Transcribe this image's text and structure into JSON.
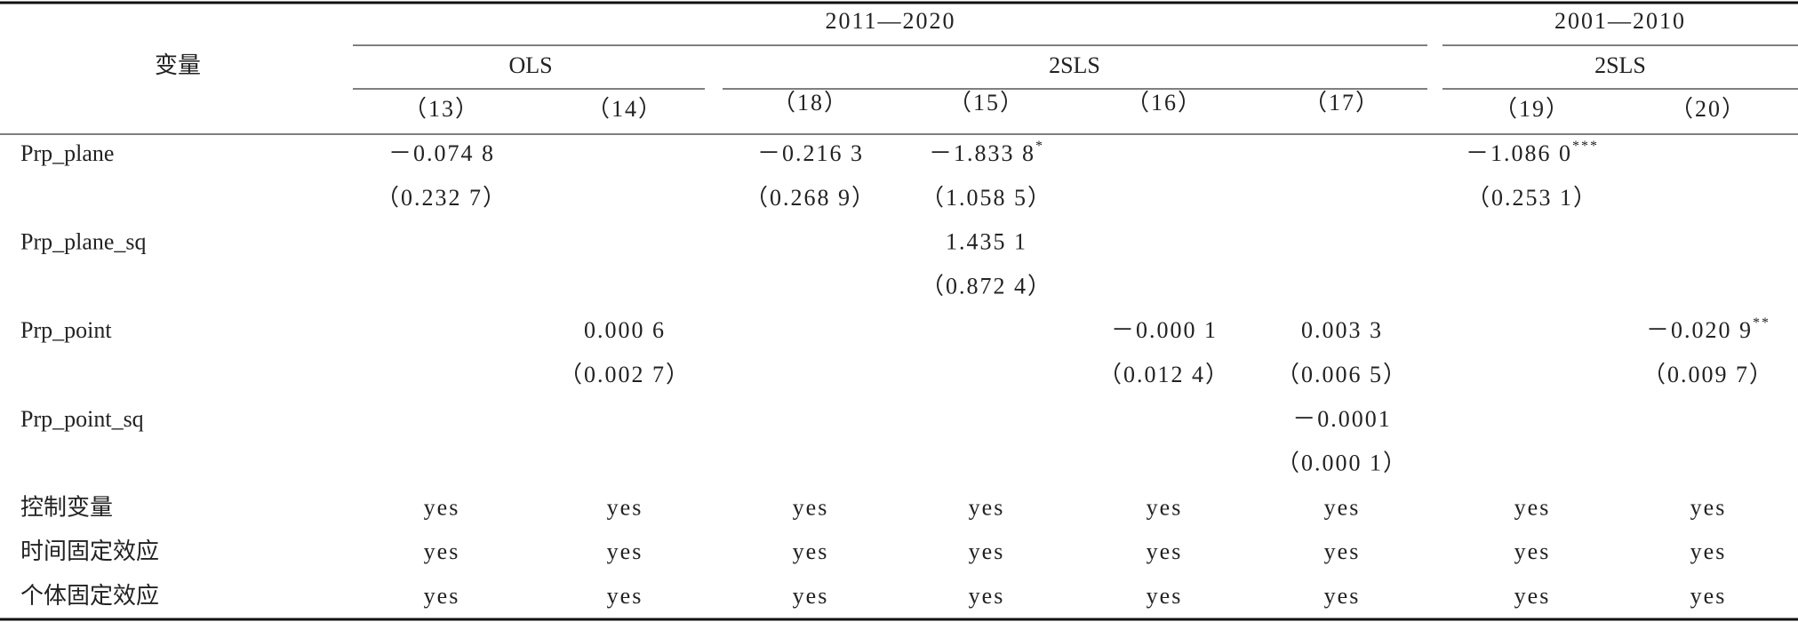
{
  "header": {
    "variable": "变量",
    "period_a": "2011—2020",
    "period_b": "2001—2010",
    "ols": "OLS",
    "tsls_a": "2SLS",
    "tsls_b": "2SLS",
    "columns": [
      "（13）",
      "（14）",
      "（18）",
      "（15）",
      "（16）",
      "（17）",
      "（19）",
      "（20）"
    ]
  },
  "table": {
    "rows": [
      {
        "label": "Prp_plane",
        "cells": [
          "－0.074 8",
          null,
          "－0.216 3",
          {
            "value": "－1.833 8",
            "sig": "*"
          },
          null,
          null,
          {
            "value": "－1.086 0",
            "sig": "***"
          },
          null
        ]
      },
      {
        "cells": [
          "（0.232 7）",
          null,
          "（0.268 9）",
          "（1.058 5）",
          null,
          null,
          "（0.253 1）",
          null
        ]
      },
      {
        "label": "Prp_plane_sq",
        "cells": [
          null,
          null,
          null,
          "1.435 1",
          null,
          null,
          null,
          null
        ]
      },
      {
        "cells": [
          null,
          null,
          null,
          "（0.872 4）",
          null,
          null,
          null,
          null
        ]
      },
      {
        "label": "Prp_point",
        "cells": [
          null,
          "0.000 6",
          null,
          null,
          "－0.000 1",
          "0.003 3",
          null,
          {
            "value": "－0.020 9",
            "sig": "**"
          }
        ]
      },
      {
        "cells": [
          null,
          "（0.002 7）",
          null,
          null,
          "（0.012 4）",
          "（0.006 5）",
          null,
          "（0.009 7）"
        ]
      },
      {
        "label": "Prp_point_sq",
        "cells": [
          null,
          null,
          null,
          null,
          null,
          "－0.0001",
          null,
          null
        ]
      },
      {
        "cells": [
          null,
          null,
          null,
          null,
          null,
          "（0.000 1）",
          null,
          null
        ]
      },
      {
        "label": "控制变量",
        "cells": [
          "yes",
          "yes",
          "yes",
          "yes",
          "yes",
          "yes",
          "yes",
          "yes"
        ]
      },
      {
        "label": "时间固定效应",
        "cells": [
          "yes",
          "yes",
          "yes",
          "yes",
          "yes",
          "yes",
          "yes",
          "yes"
        ]
      },
      {
        "label": "个体固定效应",
        "cells": [
          "yes",
          "yes",
          "yes",
          "yes",
          "yes",
          "yes",
          "yes",
          "yes"
        ]
      }
    ]
  }
}
